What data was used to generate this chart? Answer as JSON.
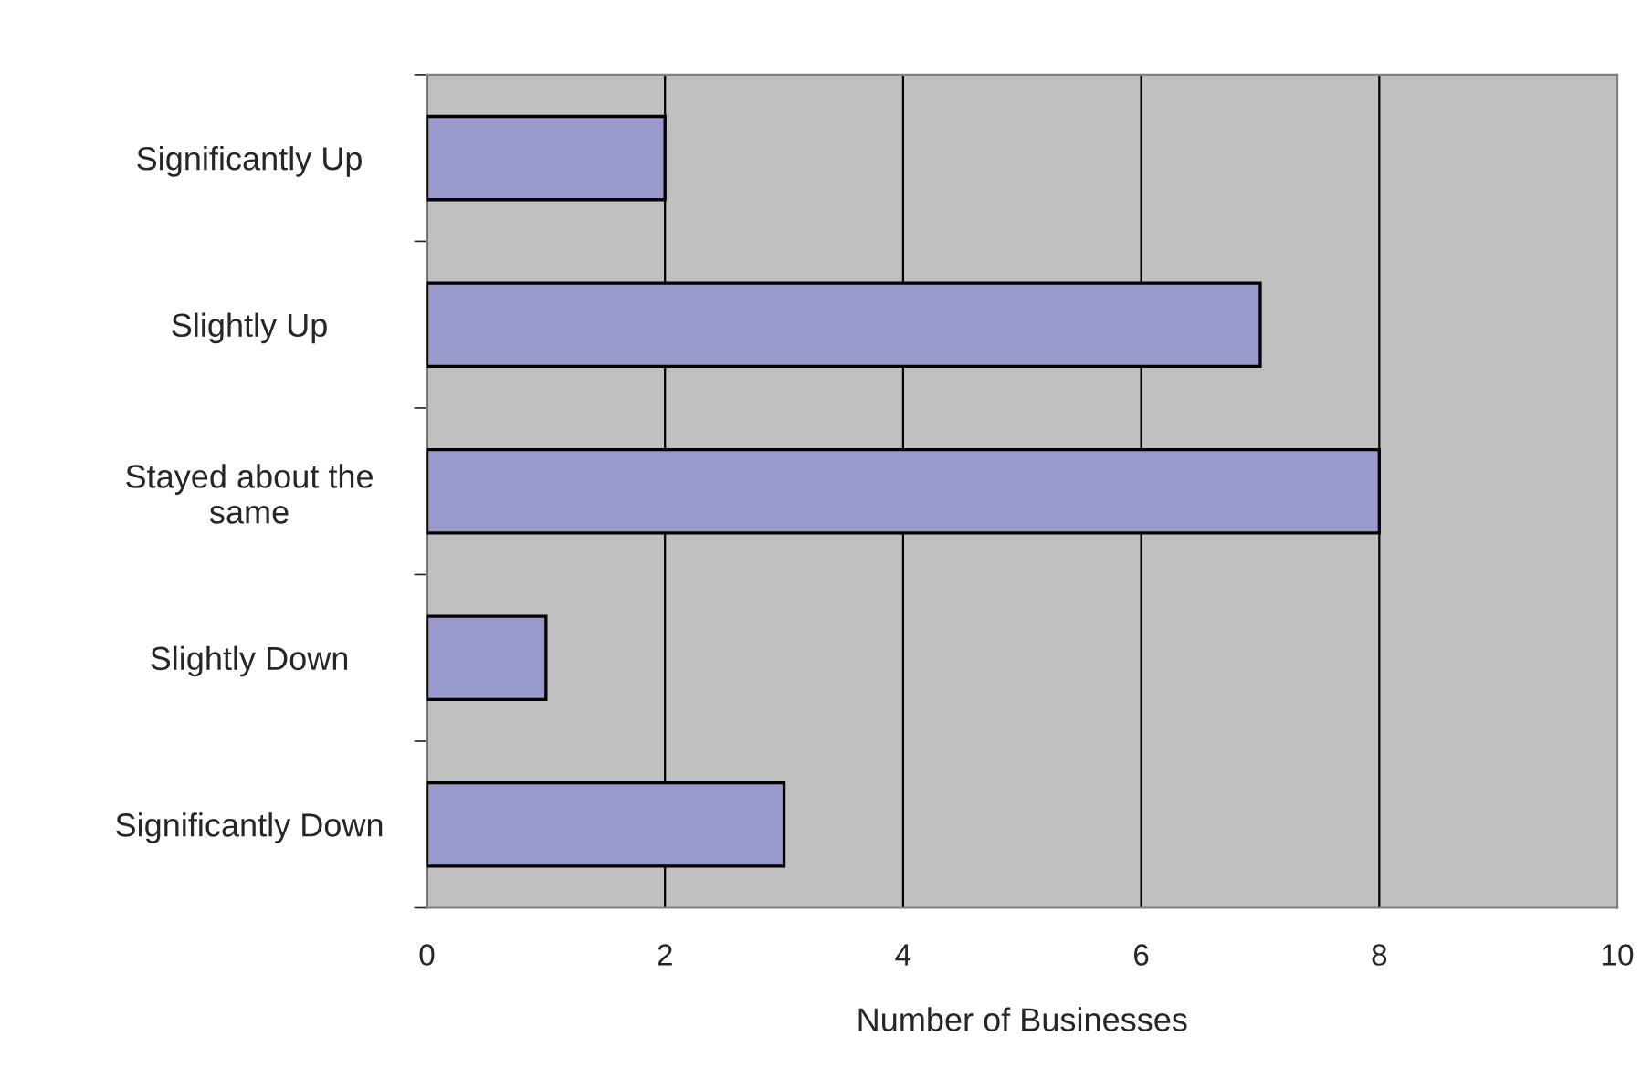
{
  "chart_data": {
    "type": "bar",
    "orientation": "horizontal",
    "xlabel": "Number of Businesses",
    "categories": [
      "Significantly Up",
      "Slightly Up",
      "Stayed about the\nsame",
      "Slightly Down",
      "Significantly Down"
    ],
    "values": [
      2,
      7,
      8,
      1,
      3
    ],
    "color": "#9999cc",
    "xlim": [
      0,
      10
    ],
    "xticks": [
      0,
      2,
      4,
      6,
      8,
      10
    ],
    "grid": "x"
  }
}
